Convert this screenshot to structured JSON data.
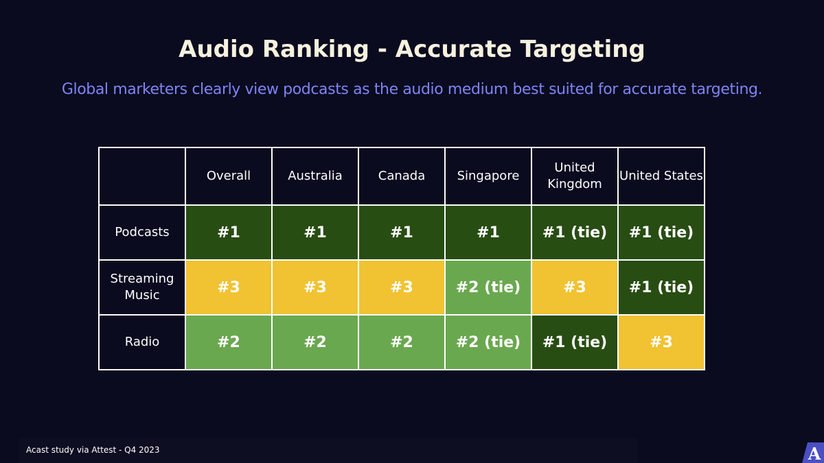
{
  "title": "Audio Ranking - Accurate Targeting",
  "subtitle": "Global marketers clearly view podcasts as the audio medium best suited for accurate targeting.",
  "colors": {
    "background": "#0a0b1f",
    "dark_green": "#284d13",
    "light_green": "#6aa84f",
    "yellow": "#f1c232",
    "subtitle": "#7e84f4"
  },
  "table": {
    "columns": [
      "Overall",
      "Australia",
      "Canada",
      "Singapore",
      "United Kingdom",
      "United States"
    ],
    "rows": [
      {
        "label": "Podcasts",
        "cells": [
          {
            "value": "#1",
            "level": "dark_green"
          },
          {
            "value": "#1",
            "level": "dark_green"
          },
          {
            "value": "#1",
            "level": "dark_green"
          },
          {
            "value": "#1",
            "level": "dark_green"
          },
          {
            "value": "#1 (tie)",
            "level": "dark_green"
          },
          {
            "value": "#1 (tie)",
            "level": "dark_green"
          }
        ]
      },
      {
        "label": "Streaming Music",
        "cells": [
          {
            "value": "#3",
            "level": "yellow"
          },
          {
            "value": "#3",
            "level": "yellow"
          },
          {
            "value": "#3",
            "level": "yellow"
          },
          {
            "value": "#2 (tie)",
            "level": "light_green"
          },
          {
            "value": "#3",
            "level": "yellow"
          },
          {
            "value": "#1 (tie)",
            "level": "dark_green"
          }
        ]
      },
      {
        "label": "Radio",
        "cells": [
          {
            "value": "#2",
            "level": "light_green"
          },
          {
            "value": "#2",
            "level": "light_green"
          },
          {
            "value": "#2",
            "level": "light_green"
          },
          {
            "value": "#2 (tie)",
            "level": "light_green"
          },
          {
            "value": "#1 (tie)",
            "level": "dark_green"
          },
          {
            "value": "#3",
            "level": "yellow"
          }
        ]
      }
    ]
  },
  "footer": "Acast study via Attest - Q4 2023",
  "logo_icon": "acast-logo-icon",
  "logo_text": "A"
}
